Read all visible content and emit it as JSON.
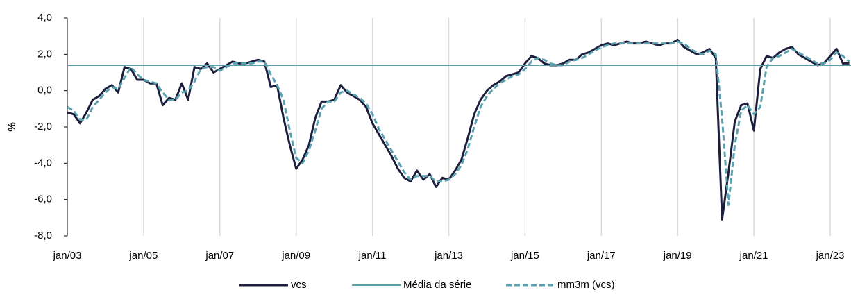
{
  "chart_data": {
    "type": "line",
    "ylabel": "%",
    "categories": [
      "jan/03",
      null,
      null,
      null,
      null,
      null,
      null,
      null,
      null,
      null,
      null,
      null,
      "jan/05",
      null,
      null,
      null,
      null,
      null,
      null,
      null,
      null,
      null,
      null,
      null,
      "jan/07",
      null,
      null,
      null,
      null,
      null,
      null,
      null,
      null,
      null,
      null,
      null,
      "jan/09",
      null,
      null,
      null,
      null,
      null,
      null,
      null,
      null,
      null,
      null,
      null,
      "jan/11",
      null,
      null,
      null,
      null,
      null,
      null,
      null,
      null,
      null,
      null,
      null,
      "jan/13",
      null,
      null,
      null,
      null,
      null,
      null,
      null,
      null,
      null,
      null,
      null,
      "jan/15",
      null,
      null,
      null,
      null,
      null,
      null,
      null,
      null,
      null,
      null,
      null,
      "jan/17",
      null,
      null,
      null,
      null,
      null,
      null,
      null,
      null,
      null,
      null,
      null,
      "jan/19",
      null,
      null,
      null,
      null,
      null,
      null,
      null,
      null,
      null,
      null,
      null,
      "jan/21",
      null,
      null,
      null,
      null,
      null,
      null,
      null,
      null,
      null,
      null,
      null,
      "jan/23",
      null,
      null,
      null
    ],
    "series": [
      {
        "name": "vcs",
        "color": "#1b1e3c",
        "dash": false,
        "values": [
          -1.2,
          -1.3,
          -1.8,
          -1.2,
          -0.5,
          -0.3,
          0.1,
          0.3,
          -0.1,
          1.3,
          1.2,
          0.6,
          0.6,
          0.4,
          0.4,
          -0.8,
          -0.4,
          -0.5,
          0.4,
          -0.5,
          1.3,
          1.2,
          1.5,
          1.0,
          1.2,
          1.4,
          1.6,
          1.5,
          1.5,
          1.6,
          1.7,
          1.6,
          0.2,
          0.3,
          -1.5,
          -3.0,
          -4.3,
          -3.8,
          -3.0,
          -1.5,
          -0.6,
          -0.6,
          -0.5,
          0.3,
          -0.1,
          -0.3,
          -0.5,
          -0.9,
          -1.8,
          -2.4,
          -3.0,
          -3.6,
          -4.3,
          -4.8,
          -5.0,
          -4.4,
          -4.9,
          -4.6,
          -5.3,
          -4.8,
          -4.9,
          -4.4,
          -3.8,
          -2.6,
          -1.3,
          -0.5,
          0.0,
          0.3,
          0.5,
          0.8,
          0.9,
          1.0,
          1.5,
          1.9,
          1.8,
          1.5,
          1.4,
          1.4,
          1.5,
          1.7,
          1.7,
          2.0,
          2.1,
          2.3,
          2.5,
          2.6,
          2.5,
          2.6,
          2.7,
          2.6,
          2.6,
          2.7,
          2.6,
          2.5,
          2.6,
          2.6,
          2.8,
          2.4,
          2.2,
          2.0,
          2.1,
          2.3,
          1.8,
          -7.1,
          -4.5,
          -1.7,
          -0.8,
          -0.7,
          -2.2,
          1.2,
          1.9,
          1.8,
          2.1,
          2.3,
          2.4,
          2.0,
          1.8,
          1.6,
          1.4,
          1.5,
          1.9,
          2.3,
          1.5,
          1.5
        ]
      },
      {
        "name": "mm3m (vcs)",
        "color": "#5aa2b0",
        "dash": true,
        "values": [
          -0.9,
          -1.1,
          -1.6,
          -1.6,
          -0.9,
          -0.5,
          -0.1,
          0.2,
          0.1,
          0.7,
          1.3,
          0.9,
          0.6,
          0.5,
          0.4,
          -0.1,
          -0.5,
          -0.5,
          -0.1,
          0.0,
          0.5,
          1.2,
          1.3,
          1.3,
          1.1,
          1.3,
          1.5,
          1.5,
          1.5,
          1.5,
          1.6,
          1.6,
          0.9,
          0.3,
          -0.5,
          -2.2,
          -3.7,
          -4.0,
          -3.3,
          -2.2,
          -1.0,
          -0.6,
          -0.6,
          -0.1,
          0.0,
          -0.2,
          -0.4,
          -0.7,
          -1.3,
          -2.1,
          -2.7,
          -3.3,
          -3.9,
          -4.5,
          -4.9,
          -4.7,
          -4.7,
          -4.7,
          -5.0,
          -5.0,
          -4.9,
          -4.6,
          -4.1,
          -3.2,
          -2.0,
          -0.9,
          -0.3,
          0.1,
          0.4,
          0.6,
          0.8,
          0.9,
          1.2,
          1.6,
          1.8,
          1.7,
          1.5,
          1.4,
          1.4,
          1.6,
          1.7,
          1.8,
          2.0,
          2.2,
          2.4,
          2.5,
          2.6,
          2.6,
          2.6,
          2.6,
          2.6,
          2.6,
          2.6,
          2.6,
          2.6,
          2.6,
          2.7,
          2.6,
          2.3,
          2.1,
          2.0,
          2.2,
          2.0,
          -1.5,
          -6.3,
          -3.0,
          -1.1,
          -0.8,
          -1.3,
          -0.9,
          1.3,
          1.8,
          1.9,
          2.1,
          2.3,
          2.1,
          1.9,
          1.7,
          1.5,
          1.5,
          1.7,
          2.1,
          1.9,
          1.6
        ]
      }
    ],
    "reference_line": {
      "name": "Média da série",
      "value": 1.4,
      "color": "#5a9ca8"
    },
    "ylim": [
      -8,
      4
    ],
    "yticks": [
      {
        "value": -8,
        "label": "-8,0"
      },
      {
        "value": -6,
        "label": "-6,0"
      },
      {
        "value": -4,
        "label": "-4,0"
      },
      {
        "value": -2,
        "label": "-2,0"
      },
      {
        "value": 0,
        "label": "0,0"
      },
      {
        "value": 2,
        "label": "2,0"
      },
      {
        "value": 4,
        "label": "4,0"
      }
    ],
    "grid": true,
    "legend": "bottom"
  }
}
